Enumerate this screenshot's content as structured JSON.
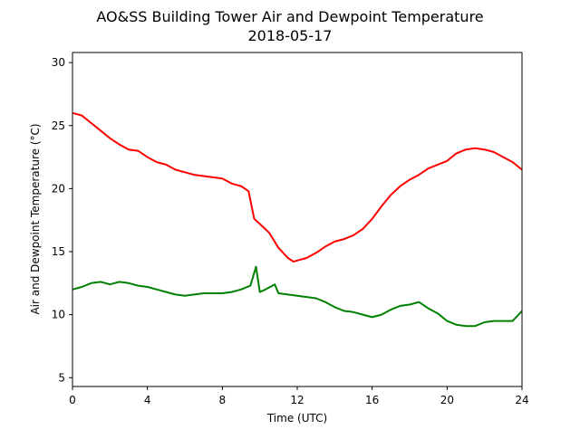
{
  "chart_data": {
    "type": "line",
    "title": "AO&SS Building Tower Air and Dewpoint Temperature",
    "subtitle": "2018-05-17",
    "xlabel": "Time (UTC)",
    "ylabel": "Air and Dewpoint Temperature (°C)",
    "xlim": [
      0,
      24
    ],
    "ylim": [
      4.3,
      30.8
    ],
    "xticks": [
      0,
      4,
      8,
      12,
      16,
      20,
      24
    ],
    "yticks": [
      5,
      10,
      15,
      20,
      25,
      30
    ],
    "grid": false,
    "legend": "none",
    "series": [
      {
        "color": "#ff0000",
        "x": [
          0,
          0.5,
          1,
          1.5,
          2,
          2.5,
          3,
          3.5,
          4,
          4.5,
          5,
          5.5,
          6,
          6.5,
          7,
          7.5,
          8,
          8.5,
          9,
          9.4,
          9.7,
          10,
          10.5,
          11,
          11.5,
          11.8,
          12,
          12.5,
          13,
          13.5,
          14,
          14.5,
          15,
          15.5,
          16,
          16.5,
          17,
          17.5,
          18,
          18.5,
          19,
          19.5,
          20,
          20.5,
          21,
          21.5,
          22,
          22.5,
          23,
          23.5,
          24
        ],
        "y": [
          26.0,
          25.8,
          25.2,
          24.6,
          24.0,
          23.5,
          23.1,
          23.0,
          22.5,
          22.1,
          21.9,
          21.5,
          21.3,
          21.1,
          21.0,
          20.9,
          20.8,
          20.4,
          20.2,
          19.8,
          17.6,
          17.2,
          16.5,
          15.3,
          14.5,
          14.2,
          14.3,
          14.5,
          14.9,
          15.4,
          15.8,
          16.0,
          16.3,
          16.8,
          17.6,
          18.6,
          19.5,
          20.2,
          20.7,
          21.1,
          21.6,
          21.9,
          22.2,
          22.8,
          23.1,
          23.2,
          23.1,
          22.9,
          22.5,
          22.1,
          21.5
        ]
      },
      {
        "color": "#008000",
        "x": [
          0,
          0.5,
          1,
          1.5,
          2,
          2.5,
          3,
          3.5,
          4,
          4.5,
          5,
          5.5,
          6,
          6.5,
          7,
          7.5,
          8,
          8.5,
          9,
          9.5,
          9.8,
          10,
          10.3,
          10.8,
          11,
          11.5,
          12,
          12.5,
          13,
          13.5,
          14,
          14.5,
          15,
          15.5,
          16,
          16.5,
          17,
          17.5,
          18,
          18.5,
          19,
          19.5,
          20,
          20.5,
          21,
          21.5,
          22,
          22.5,
          23,
          23.5,
          24
        ],
        "y": [
          12.0,
          12.2,
          12.5,
          12.6,
          12.4,
          12.6,
          12.5,
          12.3,
          12.2,
          12.0,
          11.8,
          11.6,
          11.5,
          11.6,
          11.7,
          11.7,
          11.7,
          11.8,
          12.0,
          12.3,
          13.8,
          11.8,
          12.0,
          12.4,
          11.7,
          11.6,
          11.5,
          11.4,
          11.3,
          11.0,
          10.6,
          10.3,
          10.2,
          10.0,
          9.8,
          10.0,
          10.4,
          10.7,
          10.8,
          11.0,
          10.5,
          10.1,
          9.5,
          9.2,
          9.1,
          9.1,
          9.4,
          9.5,
          9.5,
          9.5,
          10.3
        ]
      }
    ]
  }
}
